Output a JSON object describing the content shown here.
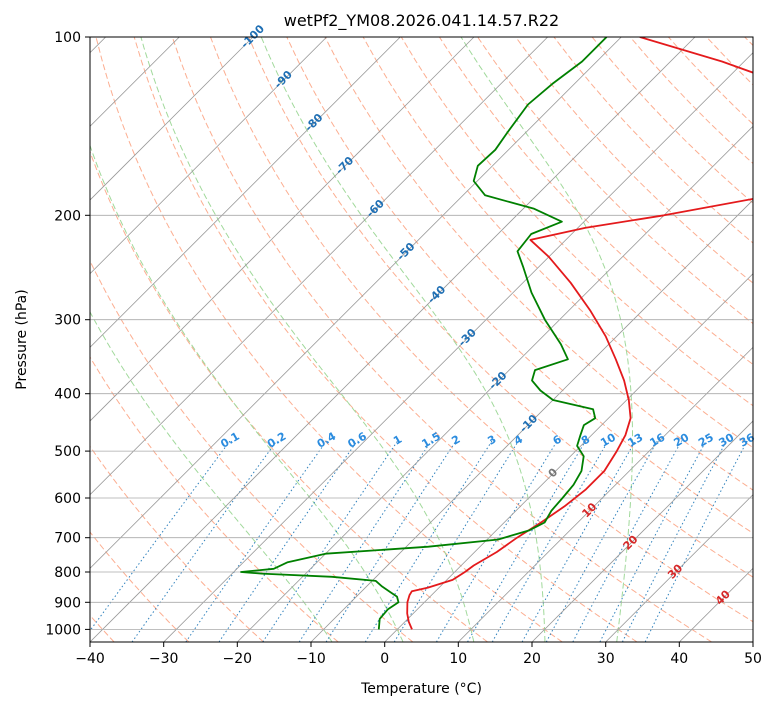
{
  "chart_data": {
    "type": "line",
    "subtype": "skew-t log-p",
    "title": "wetPf2_YM08.2026.041.14.57.R22",
    "xlabel": "Temperature (°C)",
    "ylabel": "Pressure (hPa)",
    "xlim": [
      -40,
      50
    ],
    "ylim": [
      1050,
      100
    ],
    "x_ticks": [
      -40,
      -30,
      -20,
      -10,
      0,
      10,
      20,
      30,
      40,
      50
    ],
    "y_ticks": [
      1000,
      900,
      800,
      700,
      600,
      500,
      400,
      300,
      200,
      100
    ],
    "grid": true,
    "colors": {
      "temperature": "#e41a1c",
      "dewpoint": "#008000",
      "isotherm_grid": "#999999",
      "pressure_grid": "#aaaaaa",
      "dry_adiabat": "#fcae91",
      "moist_adiabat": "#a1d99b",
      "mixing_ratio": "#3182bd",
      "cold_label": "#1f6fb4",
      "warm_label": "#d62728",
      "zero_label": "#777777",
      "mixing_label": "#2b8cdf"
    },
    "series": [
      {
        "name": "Temperature",
        "points": [
          {
            "p": 1000,
            "t": 2.0
          },
          {
            "p": 970,
            "t": 0.5
          },
          {
            "p": 940,
            "t": -0.8
          },
          {
            "p": 900,
            "t": -2.3
          },
          {
            "p": 875,
            "t": -3.0
          },
          {
            "p": 862,
            "t": -3.2
          },
          {
            "p": 850,
            "t": -1.5
          },
          {
            "p": 825,
            "t": 0.8
          },
          {
            "p": 800,
            "t": 1.4
          },
          {
            "p": 780,
            "t": 1.7
          },
          {
            "p": 740,
            "t": 3.0
          },
          {
            "p": 700,
            "t": 3.8
          },
          {
            "p": 660,
            "t": 5.0
          },
          {
            "p": 620,
            "t": 6.0
          },
          {
            "p": 580,
            "t": 6.6
          },
          {
            "p": 540,
            "t": 6.6
          },
          {
            "p": 500,
            "t": 5.6
          },
          {
            "p": 470,
            "t": 4.6
          },
          {
            "p": 440,
            "t": 3.0
          },
          {
            "p": 410,
            "t": 0.3
          },
          {
            "p": 380,
            "t": -3.0
          },
          {
            "p": 350,
            "t": -7.0
          },
          {
            "p": 320,
            "t": -11.5
          },
          {
            "p": 290,
            "t": -17.0
          },
          {
            "p": 260,
            "t": -23.5
          },
          {
            "p": 235,
            "t": -30.0
          },
          {
            "p": 220,
            "t": -34.8
          },
          {
            "p": 210,
            "t": -29.0
          },
          {
            "p": 200,
            "t": -20.0
          },
          {
            "p": 185,
            "t": -8.0
          },
          {
            "p": 170,
            "t": -0.5
          },
          {
            "p": 160,
            "t": 2.5
          },
          {
            "p": 150,
            "t": 1.0
          },
          {
            "p": 140,
            "t": -3.5
          },
          {
            "p": 130,
            "t": -11.5
          },
          {
            "p": 120,
            "t": -21.5
          },
          {
            "p": 110,
            "t": -33.0
          },
          {
            "p": 100,
            "t": -47.5
          }
        ]
      },
      {
        "name": "Dewpoint",
        "points": [
          {
            "p": 1000,
            "t": -2.5
          },
          {
            "p": 960,
            "t": -3.8
          },
          {
            "p": 925,
            "t": -4.0
          },
          {
            "p": 900,
            "t": -3.5
          },
          {
            "p": 880,
            "t": -4.5
          },
          {
            "p": 865,
            "t": -6.0
          },
          {
            "p": 845,
            "t": -8.0
          },
          {
            "p": 828,
            "t": -9.5
          },
          {
            "p": 815,
            "t": -16.0
          },
          {
            "p": 805,
            "t": -26.0
          },
          {
            "p": 800,
            "t": -29.0
          },
          {
            "p": 790,
            "t": -25.0
          },
          {
            "p": 770,
            "t": -24.0
          },
          {
            "p": 745,
            "t": -20.0
          },
          {
            "p": 725,
            "t": -7.0
          },
          {
            "p": 705,
            "t": 1.5
          },
          {
            "p": 680,
            "t": 4.5
          },
          {
            "p": 660,
            "t": 5.5
          },
          {
            "p": 630,
            "t": 4.8
          },
          {
            "p": 600,
            "t": 4.6
          },
          {
            "p": 570,
            "t": 4.3
          },
          {
            "p": 540,
            "t": 3.5
          },
          {
            "p": 510,
            "t": 1.8
          },
          {
            "p": 490,
            "t": -0.5
          },
          {
            "p": 470,
            "t": -1.5
          },
          {
            "p": 452,
            "t": -2.4
          },
          {
            "p": 440,
            "t": -1.8
          },
          {
            "p": 425,
            "t": -3.3
          },
          {
            "p": 410,
            "t": -10.0
          },
          {
            "p": 395,
            "t": -13.0
          },
          {
            "p": 380,
            "t": -15.5
          },
          {
            "p": 365,
            "t": -16.5
          },
          {
            "p": 350,
            "t": -13.5
          },
          {
            "p": 330,
            "t": -16.5
          },
          {
            "p": 300,
            "t": -22.0
          },
          {
            "p": 270,
            "t": -27.5
          },
          {
            "p": 245,
            "t": -32.0
          },
          {
            "p": 230,
            "t": -35.0
          },
          {
            "p": 215,
            "t": -35.5
          },
          {
            "p": 205,
            "t": -33.0
          },
          {
            "p": 195,
            "t": -38.5
          },
          {
            "p": 185,
            "t": -47.0
          },
          {
            "p": 175,
            "t": -50.5
          },
          {
            "p": 165,
            "t": -52.0
          },
          {
            "p": 155,
            "t": -51.8
          },
          {
            "p": 145,
            "t": -52.5
          },
          {
            "p": 130,
            "t": -53.5
          },
          {
            "p": 120,
            "t": -53.0
          },
          {
            "p": 110,
            "t": -52.0
          },
          {
            "p": 100,
            "t": -52.0
          }
        ]
      }
    ],
    "background_lines": {
      "isotherms_deg_c": [
        -200,
        -190,
        -180,
        -170,
        -160,
        -150,
        -140,
        -130,
        -120,
        -110,
        -100,
        -90,
        -80,
        -70,
        -60,
        -50,
        -40,
        -30,
        -20,
        -10,
        0,
        10,
        20,
        30,
        40,
        50
      ],
      "dry_adiabats_deg_c": [
        -70,
        -60,
        -50,
        -40,
        -30,
        -20,
        -10,
        0,
        10,
        20,
        30,
        40,
        50,
        60,
        70,
        80,
        90,
        100,
        110,
        120,
        130,
        140,
        150,
        160,
        170,
        180,
        190,
        200
      ],
      "moist_adiabats_deg_c": [
        -10,
        0,
        10,
        20,
        30
      ],
      "mixing_ratios_g_per_kg": [
        0.1,
        0.2,
        0.4,
        0.6,
        1,
        1.5,
        2,
        3,
        4,
        6,
        8,
        10,
        13,
        16,
        20,
        25,
        30,
        36
      ]
    },
    "isotherm_annotations": [
      {
        "label": "-100",
        "value": -100
      },
      {
        "label": "-90",
        "value": -90
      },
      {
        "label": "-80",
        "value": -80
      },
      {
        "label": "-70",
        "value": -70
      },
      {
        "label": "-60",
        "value": -60
      },
      {
        "label": "-50",
        "value": -50
      },
      {
        "label": "-40",
        "value": -40
      },
      {
        "label": "-30",
        "value": -30
      },
      {
        "label": "-20",
        "value": -20
      },
      {
        "label": "-10",
        "value": -10
      },
      {
        "label": "0",
        "value": 0
      },
      {
        "label": "10",
        "value": 10
      },
      {
        "label": "20",
        "value": 20
      },
      {
        "label": "30",
        "value": 30
      },
      {
        "label": "40",
        "value": 40
      }
    ],
    "mixing_ratio_annotations": [
      "0.1",
      "0.2",
      "0.4",
      "0.6",
      "1",
      "1.5",
      "2",
      "3",
      "4",
      "6",
      "8",
      "10",
      "13",
      "16",
      "20",
      "25",
      "30",
      "36"
    ]
  }
}
